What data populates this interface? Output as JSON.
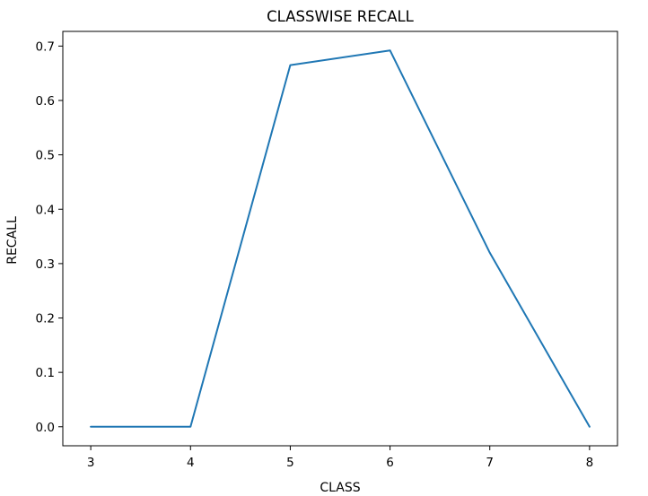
{
  "chart_data": {
    "type": "line",
    "title": "CLASSWISE RECALL",
    "xlabel": "CLASS",
    "ylabel": "RECALL",
    "x": [
      3,
      4,
      5,
      6,
      7,
      8
    ],
    "series": [
      {
        "values": [
          0.0,
          0.0,
          0.665,
          0.692,
          0.32,
          0.0
        ],
        "color": "#1f77b4"
      }
    ],
    "xlim": [
      2.72,
      8.28
    ],
    "ylim": [
      -0.035,
      0.727
    ],
    "xticks": [
      3,
      4,
      5,
      6,
      7,
      8
    ],
    "yticks": [
      0.0,
      0.1,
      0.2,
      0.3,
      0.4,
      0.5,
      0.6,
      0.7
    ],
    "xtick_labels": [
      "3",
      "4",
      "5",
      "6",
      "7",
      "8"
    ],
    "ytick_labels": [
      "0.0",
      "0.1",
      "0.2",
      "0.3",
      "0.4",
      "0.5",
      "0.6",
      "0.7"
    ],
    "grid": false,
    "legend": false
  }
}
